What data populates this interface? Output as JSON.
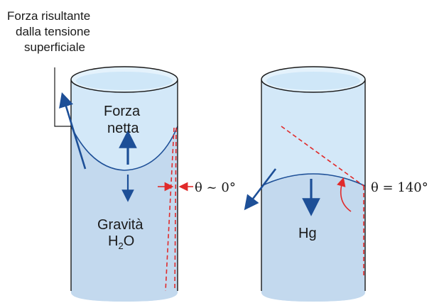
{
  "colors": {
    "tube_fill": "#d3e8f8",
    "tube_outline": "#1a1a1a",
    "tube_top": "#e4f2fc",
    "liquid_fill": "#c3d9ee",
    "water_top": "#cfe7f8",
    "arrow_blue": "#1d4f97",
    "angle_red": "#e02a2a"
  },
  "icons": {
    "up_arrow": "arrow-up-icon",
    "down_arrow": "arrow-down-icon"
  },
  "labels": {
    "surface_force_line1": "Forza risultante",
    "surface_force_line2": "dalla tensione",
    "surface_force_line3": "superficiale",
    "net_force_line1": "Forza",
    "net_force_line2": "netta",
    "gravity": "Gravità",
    "water_H": "H",
    "water_sub": "2",
    "water_O": "O",
    "water_angle": "θ ~ 0°",
    "mercury": "Hg",
    "mercury_angle": "θ = 140°"
  }
}
